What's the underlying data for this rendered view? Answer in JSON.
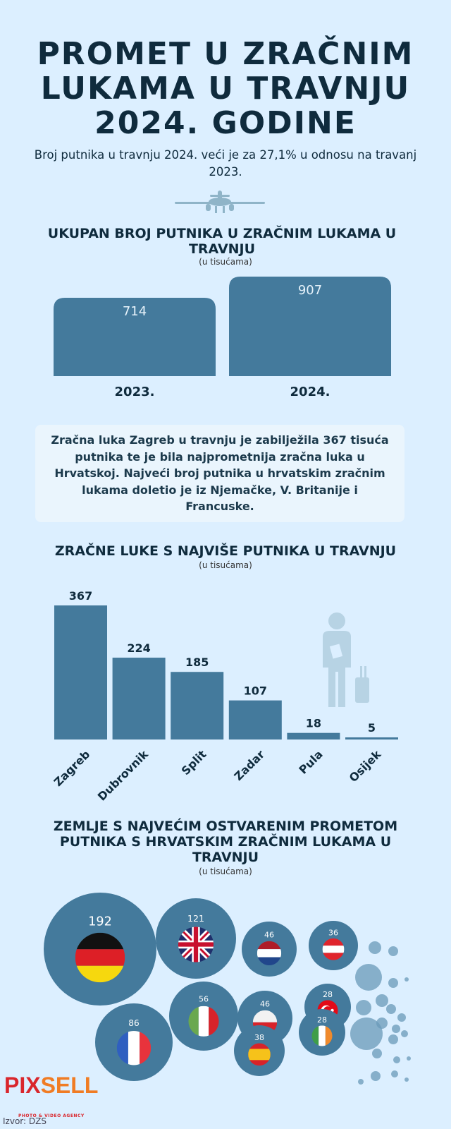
{
  "header": {
    "title": "PROMET U ZRAČNIM LUKAMA U TRAVNJU 2024. GODINE",
    "subtitle": "Broj putnika u travnju 2024. veći je za 27,1% u odnosu na travanj 2023."
  },
  "colors": {
    "background": "#dcefff",
    "bar": "#447a9c",
    "title": "#0f2b3d"
  },
  "note": "Zračna luka Zagreb u travnju je zabilježila 367 tisuća putnika te je bila najprometnija zračna luka u Hrvatskoj. Najveći broj putnika u hrvatskim zračnim lukama doletio je iz Njemačke, V. Britanije i Francuske.",
  "chart_data": [
    {
      "type": "bar",
      "title": "UKUPAN BROJ PUTNIKA U ZRAČNIM LUKAMA U TRAVNJU",
      "subtitle": "(u tisućama)",
      "categories": [
        "2023.",
        "2024."
      ],
      "values": [
        714,
        907
      ]
    },
    {
      "type": "bar",
      "title": "ZRAČNE LUKE S NAJVIŠE PUTNIKA U TRAVNJU",
      "subtitle": "(u tisućama)",
      "categories": [
        "Zagreb",
        "Dubrovnik",
        "Split",
        "Zadar",
        "Pula",
        "Osijek"
      ],
      "values": [
        367,
        224,
        185,
        107,
        18,
        5
      ]
    },
    {
      "type": "bubble",
      "title": "ZEMLJE S NAJVEĆIM OSTVARENIM PROMETOM PUTNIKA S HRVATSKIM ZRAČNIM LUKAMA U TRAVNJU",
      "subtitle": "(u tisućama)",
      "items": [
        {
          "country": "Njemačka",
          "flag": "de",
          "value": 192
        },
        {
          "country": "V. Britanija",
          "flag": "gb",
          "value": 121
        },
        {
          "country": "Nizozemska",
          "flag": "nl",
          "value": 46
        },
        {
          "country": "Austrija",
          "flag": "at",
          "value": 36
        },
        {
          "country": "Poljska",
          "flag": "pl",
          "value": 46
        },
        {
          "country": "Turska",
          "flag": "tr",
          "value": 28
        },
        {
          "country": "Italija",
          "flag": "it",
          "value": 56
        },
        {
          "country": "Francuska",
          "flag": "fr",
          "value": 86
        },
        {
          "country": "Španjolska",
          "flag": "es",
          "value": 38
        },
        {
          "country": "Irska",
          "flag": "ie",
          "value": 28
        }
      ]
    }
  ],
  "icons": {
    "plane": "airplane-icon",
    "traveler": "traveler-with-suitcase-icon"
  },
  "footer": {
    "logo": "PIXSELL",
    "logo_sub": "PHOTO & VIDEO AGENCY",
    "source": "Izvor: DZS"
  }
}
